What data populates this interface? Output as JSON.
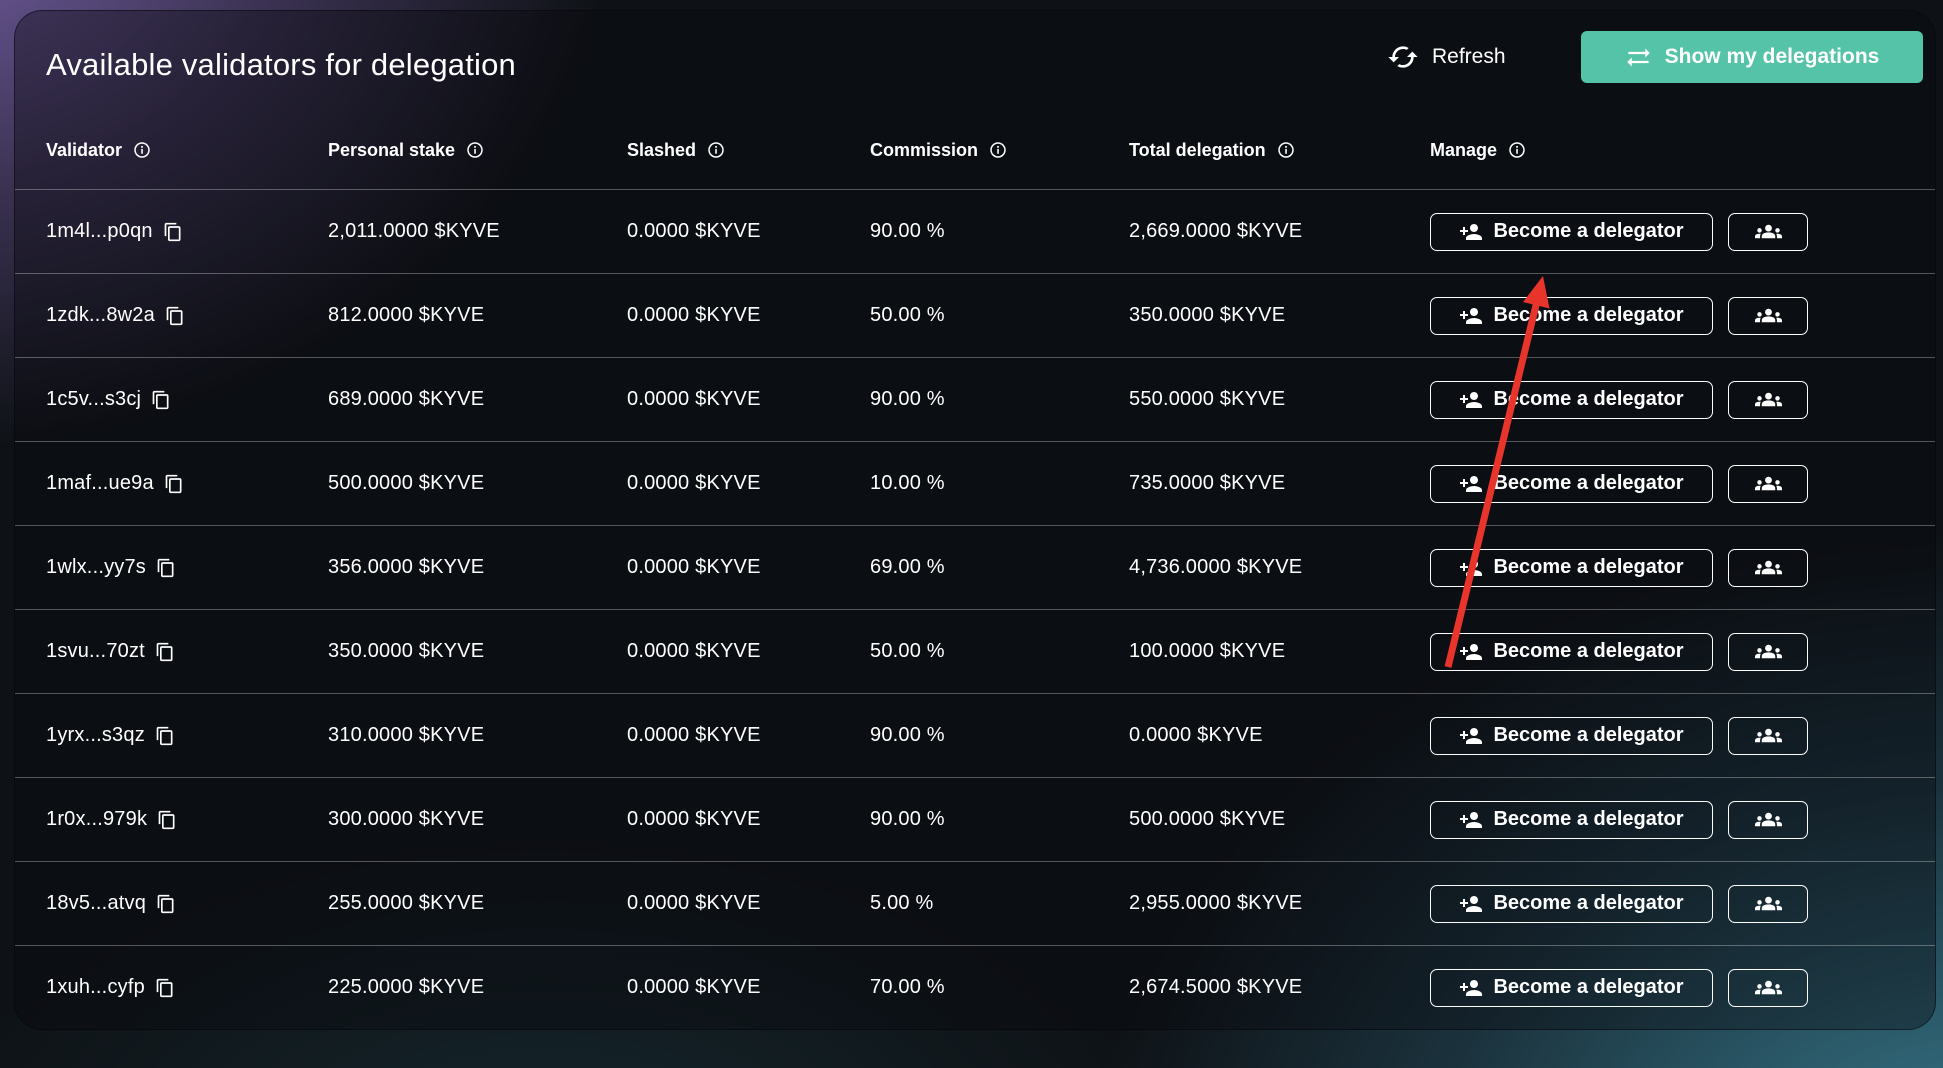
{
  "title": "Available validators for delegation",
  "toolbar": {
    "refresh_label": "Refresh",
    "show_delegations_label": "Show my delegations"
  },
  "table": {
    "columns": [
      {
        "label": "Validator"
      },
      {
        "label": "Personal stake"
      },
      {
        "label": "Slashed"
      },
      {
        "label": "Commission"
      },
      {
        "label": "Total delegation"
      },
      {
        "label": "Manage"
      }
    ],
    "delegate_button_label": "Become a delegator",
    "rows": [
      {
        "validator": "1m4l...p0qn",
        "personal_stake": "2,011.0000 $KYVE",
        "slashed": "0.0000 $KYVE",
        "commission": "90.00 %",
        "total_delegation": "2,669.0000 $KYVE"
      },
      {
        "validator": "1zdk...8w2a",
        "personal_stake": "812.0000 $KYVE",
        "slashed": "0.0000 $KYVE",
        "commission": "50.00 %",
        "total_delegation": "350.0000 $KYVE"
      },
      {
        "validator": "1c5v...s3cj",
        "personal_stake": "689.0000 $KYVE",
        "slashed": "0.0000 $KYVE",
        "commission": "90.00 %",
        "total_delegation": "550.0000 $KYVE"
      },
      {
        "validator": "1maf...ue9a",
        "personal_stake": "500.0000 $KYVE",
        "slashed": "0.0000 $KYVE",
        "commission": "10.00 %",
        "total_delegation": "735.0000 $KYVE"
      },
      {
        "validator": "1wlx...yy7s",
        "personal_stake": "356.0000 $KYVE",
        "slashed": "0.0000 $KYVE",
        "commission": "69.00 %",
        "total_delegation": "4,736.0000 $KYVE"
      },
      {
        "validator": "1svu...70zt",
        "personal_stake": "350.0000 $KYVE",
        "slashed": "0.0000 $KYVE",
        "commission": "50.00 %",
        "total_delegation": "100.0000 $KYVE"
      },
      {
        "validator": "1yrx...s3qz",
        "personal_stake": "310.0000 $KYVE",
        "slashed": "0.0000 $KYVE",
        "commission": "90.00 %",
        "total_delegation": "0.0000 $KYVE"
      },
      {
        "validator": "1r0x...979k",
        "personal_stake": "300.0000 $KYVE",
        "slashed": "0.0000 $KYVE",
        "commission": "90.00 %",
        "total_delegation": "500.0000 $KYVE"
      },
      {
        "validator": "18v5...atvq",
        "personal_stake": "255.0000 $KYVE",
        "slashed": "0.0000 $KYVE",
        "commission": "5.00 %",
        "total_delegation": "2,955.0000 $KYVE"
      },
      {
        "validator": "1xuh...cyfp",
        "personal_stake": "225.0000 $KYVE",
        "slashed": "0.0000 $KYVE",
        "commission": "70.00 %",
        "total_delegation": "2,674.5000 $KYVE"
      }
    ]
  },
  "annotation": {
    "shape": "arrow",
    "color": "#e8352c",
    "points_to": "Become a delegator button of first validator row"
  },
  "colors": {
    "accent_teal": "#54c3a8",
    "annotation_red": "#e8352c",
    "background_purple": "#5f4c82",
    "background_teal": "#2c5f72"
  }
}
